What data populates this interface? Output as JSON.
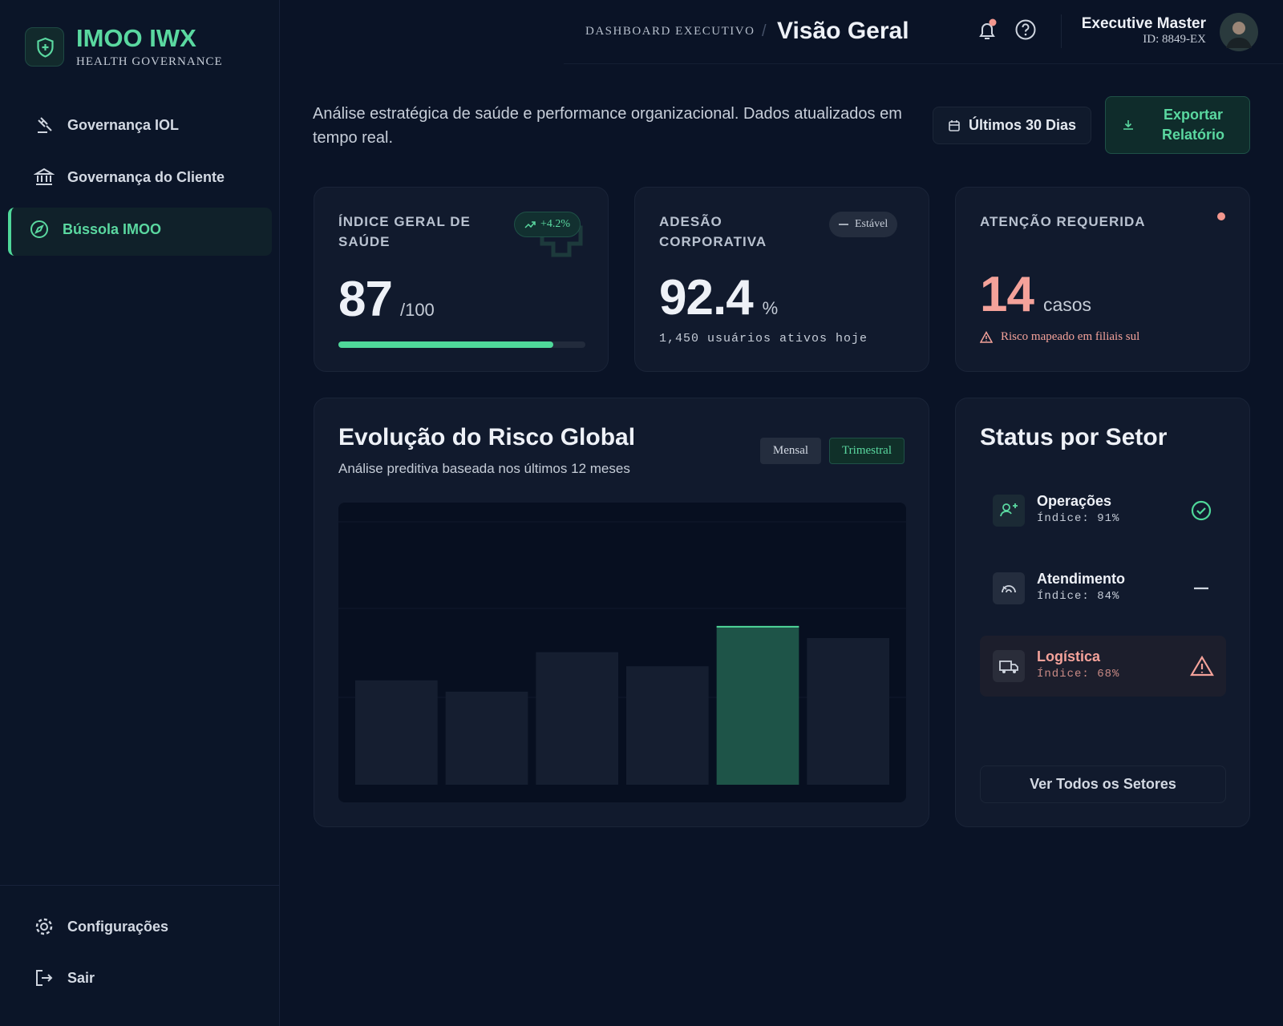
{
  "brand": {
    "name": "IMOO IWX",
    "tagline": "HEALTH GOVERNANCE"
  },
  "nav": [
    "Governança IOL",
    "Governança do Cliente",
    "Bússola IMOO"
  ],
  "active_nav": 2,
  "nav_bottom": [
    "Configurações",
    "Sair"
  ],
  "header": {
    "section": "DASHBOARD EXECUTIVO",
    "title": "Visão Geral",
    "user_name": "Executive Master",
    "user_id": "ID: 8849-EX"
  },
  "intro": "Análise estratégica de saúde e performance organizacional. Dados atualizados em tempo real.",
  "range_button": "Últimos 30 Dias",
  "export_button": "Exportar Relatório",
  "kpis": [
    {
      "label": "ÍNDICE GERAL DE SAÚDE",
      "badge": "+4.2%",
      "value": 87,
      "unit": "/100",
      "max": 100
    },
    {
      "label": "ADESÃO CORPORATIVA",
      "badge": "Estável",
      "value": 92.4,
      "unit": "%",
      "note": "1,450 usuários ativos hoje"
    },
    {
      "label": "ATENÇÃO REQUERIDA",
      "value": 14,
      "unit": "casos",
      "note": "Risco mapeado em filiais sul"
    }
  ],
  "risk_chart": {
    "type": "bar",
    "title": "Evolução do Risco Global",
    "subtitle": "Análise preditiva baseada nos últimos 12 meses",
    "toggles": [
      "Mensal",
      "Trimestral"
    ],
    "active_toggle": 1,
    "values": [
      37,
      33,
      47,
      42,
      56,
      52
    ],
    "ylim": [
      0,
      100
    ],
    "color": "#151e30",
    "highlight": 4,
    "highlight_color": "#1e5448"
  },
  "sectors": {
    "title": "Status por Setor",
    "items": [
      {
        "name": "Operações",
        "index": "Índice: 91%",
        "status": "ok"
      },
      {
        "name": "Atendimento",
        "index": "Índice: 84%",
        "status": "stable"
      },
      {
        "name": "Logística",
        "index": "Índice: 68%",
        "status": "alert"
      }
    ],
    "button": "Ver Todos os Setores"
  }
}
